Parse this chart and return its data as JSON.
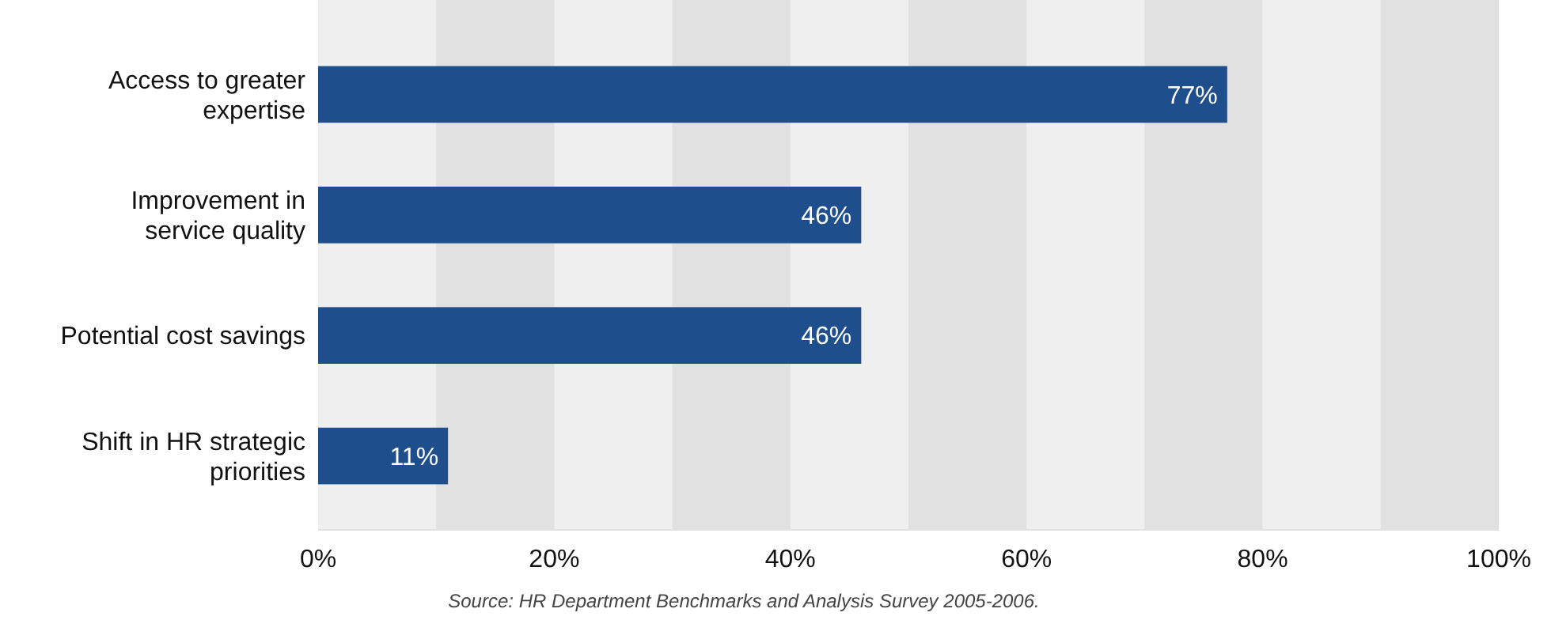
{
  "chart_data": {
    "type": "bar",
    "orientation": "horizontal",
    "categories": [
      "Access to greater expertise",
      "Improvement in service quality",
      "Potential cost savings",
      "Shift in HR strategic priorities"
    ],
    "values": [
      77,
      46,
      46,
      11
    ],
    "color": "#1f4e8c",
    "data_labels": true,
    "value_labels": [
      "77%",
      "46%",
      "46%",
      "11%"
    ],
    "xlim": [
      0,
      100
    ],
    "xticks": [
      {
        "value": 0,
        "label": "0%"
      },
      {
        "value": 20,
        "label": "20%"
      },
      {
        "value": 40,
        "label": "40%"
      },
      {
        "value": 60,
        "label": "60%"
      },
      {
        "value": 80,
        "label": "80%"
      },
      {
        "value": 100,
        "label": "100%"
      }
    ],
    "bands": [
      {
        "axis": "x",
        "from": 10,
        "to": 20,
        "color": "#e1e1e1"
      },
      {
        "axis": "x",
        "from": 30,
        "to": 40,
        "color": "#e1e1e1"
      },
      {
        "axis": "x",
        "from": 50,
        "to": 60,
        "color": "#e1e1e1"
      },
      {
        "axis": "x",
        "from": 70,
        "to": 80,
        "color": "#e1e1e1"
      },
      {
        "axis": "x",
        "from": 90,
        "to": 100,
        "color": "#e1e1e1"
      }
    ],
    "annotations": [
      "Source: HR Department Benchmarks and Analysis Survey 2005-2006."
    ]
  }
}
